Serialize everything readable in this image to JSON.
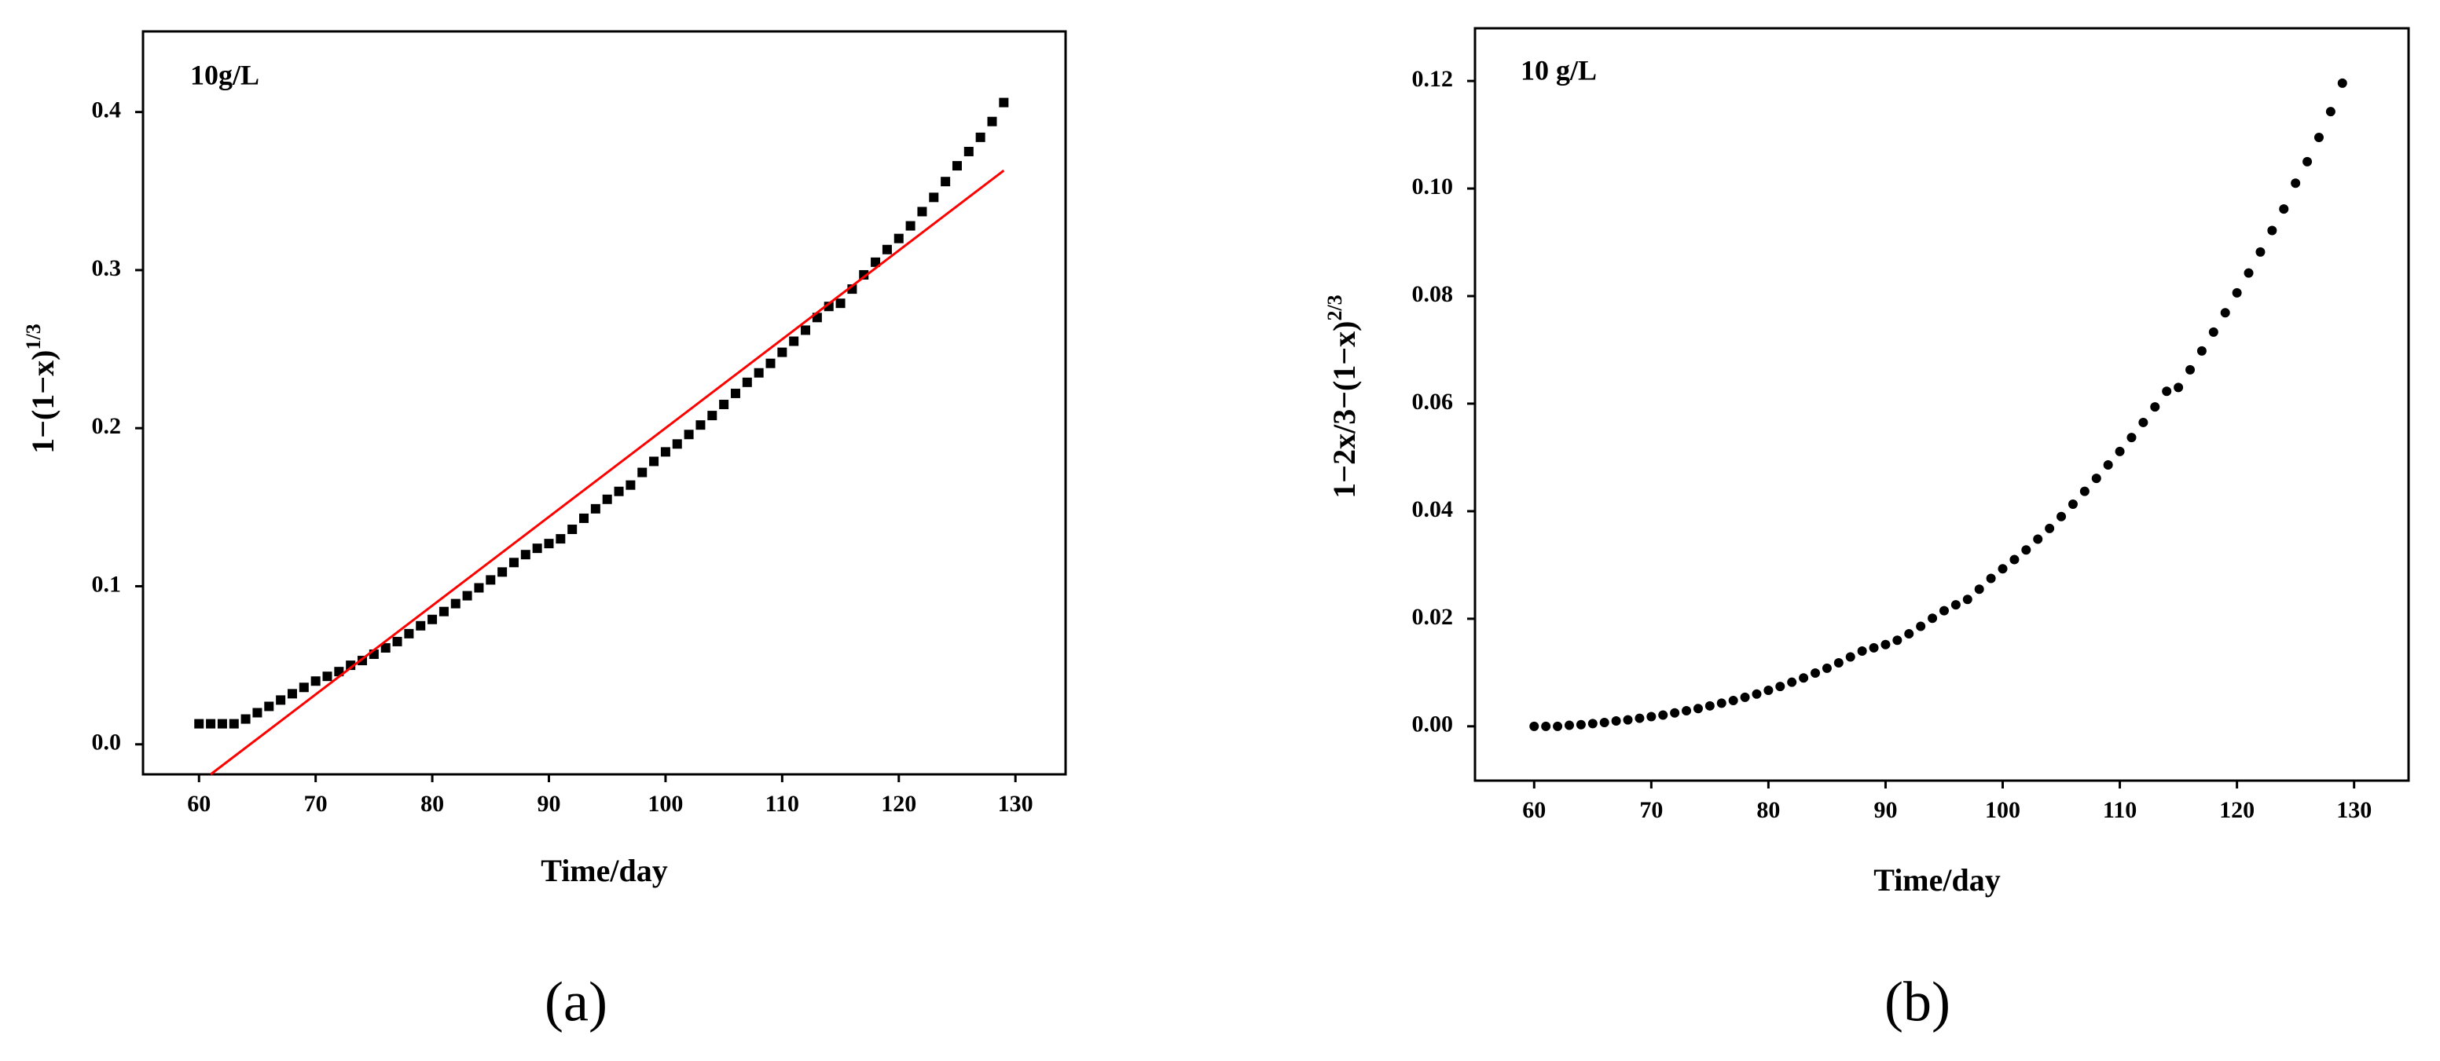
{
  "chart_data": [
    {
      "type": "scatter",
      "annotation": "10g/L",
      "panel_label": "(a)",
      "xlabel": "Time/day",
      "ylabel": {
        "text": "1−(1−x)",
        "sup": "1/3"
      },
      "x": [
        60,
        61,
        62,
        63,
        64,
        65,
        66,
        67,
        68,
        69,
        70,
        71,
        72,
        73,
        74,
        75,
        76,
        77,
        78,
        79,
        80,
        81,
        82,
        83,
        84,
        85,
        86,
        87,
        88,
        89,
        90,
        91,
        92,
        93,
        94,
        95,
        96,
        97,
        98,
        99,
        100,
        101,
        102,
        103,
        104,
        105,
        106,
        107,
        108,
        109,
        110,
        111,
        112,
        113,
        114,
        115,
        116,
        117,
        118,
        119,
        120,
        121,
        122,
        123,
        124,
        125,
        126,
        127,
        128,
        129
      ],
      "series": [
        {
          "color": "#000000",
          "marker": "square",
          "values": [
            0.013,
            0.013,
            0.013,
            0.013,
            0.016,
            0.02,
            0.024,
            0.028,
            0.032,
            0.036,
            0.04,
            0.043,
            0.046,
            0.05,
            0.053,
            0.057,
            0.061,
            0.065,
            0.07,
            0.075,
            0.079,
            0.084,
            0.089,
            0.094,
            0.099,
            0.104,
            0.109,
            0.115,
            0.12,
            0.124,
            0.127,
            0.13,
            0.136,
            0.143,
            0.149,
            0.155,
            0.16,
            0.164,
            0.172,
            0.179,
            0.185,
            0.19,
            0.196,
            0.202,
            0.208,
            0.215,
            0.222,
            0.229,
            0.235,
            0.241,
            0.248,
            0.255,
            0.262,
            0.27,
            0.277,
            0.279,
            0.288,
            0.297,
            0.305,
            0.313,
            0.32,
            0.328,
            0.337,
            0.346,
            0.356,
            0.366,
            0.375,
            0.384,
            0.394,
            0.406
          ]
        },
        {
          "color": "#ff0000",
          "marker": "line",
          "x": [
            61,
            129
          ],
          "values": [
            -0.019,
            0.363
          ]
        }
      ],
      "xlim": [
        55.2,
        134.3
      ],
      "ylim": [
        -0.019,
        0.451
      ],
      "xticks": [
        60,
        70,
        80,
        90,
        100,
        110,
        120,
        130
      ],
      "yticks": [
        {
          "value": 0,
          "label": "0.0"
        },
        {
          "value": 0.1,
          "label": "0.1"
        },
        {
          "value": 0.2,
          "label": "0.2"
        },
        {
          "value": 0.3,
          "label": "0.3"
        },
        {
          "value": 0.4,
          "label": "0.4"
        }
      ]
    },
    {
      "type": "scatter",
      "annotation": "10 g/L",
      "panel_label": "(b)",
      "xlabel": "Time/day",
      "ylabel": {
        "text": "1−2x/3−(1−x)",
        "sup": "2/3"
      },
      "x": [
        60,
        61,
        62,
        63,
        64,
        65,
        66,
        67,
        68,
        69,
        70,
        71,
        72,
        73,
        74,
        75,
        76,
        77,
        78,
        79,
        80,
        81,
        82,
        83,
        84,
        85,
        86,
        87,
        88,
        89,
        90,
        91,
        92,
        93,
        94,
        95,
        96,
        97,
        98,
        99,
        100,
        101,
        102,
        103,
        104,
        105,
        106,
        107,
        108,
        109,
        110,
        111,
        112,
        113,
        114,
        115,
        116,
        117,
        118,
        119,
        120,
        121,
        122,
        123,
        124,
        125,
        126,
        127,
        128,
        129
      ],
      "series": [
        {
          "color": "#000000",
          "marker": "circle",
          "values": [
            0,
            0,
            0,
            0.0002,
            0.0003,
            0.0005,
            0.0007,
            0.001,
            0.0012,
            0.0015,
            0.0018,
            0.0021,
            0.0025,
            0.0029,
            0.0033,
            0.0038,
            0.0043,
            0.0048,
            0.0054,
            0.006,
            0.0067,
            0.0074,
            0.0082,
            0.009,
            0.0099,
            0.0108,
            0.0118,
            0.0129,
            0.014,
            0.0146,
            0.0152,
            0.016,
            0.0172,
            0.0186,
            0.0201,
            0.0215,
            0.0226,
            0.0236,
            0.0255,
            0.0275,
            0.0293,
            0.031,
            0.0328,
            0.0348,
            0.0368,
            0.039,
            0.0413,
            0.0437,
            0.0461,
            0.0486,
            0.0511,
            0.0537,
            0.0565,
            0.0594,
            0.0623,
            0.063,
            0.0663,
            0.0698,
            0.0733,
            0.0769,
            0.0806,
            0.0843,
            0.0882,
            0.0922,
            0.0962,
            0.101,
            0.105,
            0.1095,
            0.1143,
            0.1196
          ]
        }
      ],
      "xlim": [
        54.95,
        134.65
      ],
      "ylim": [
        -0.0101,
        0.1298
      ],
      "xticks": [
        60,
        70,
        80,
        90,
        100,
        110,
        120,
        130
      ],
      "yticks": [
        {
          "value": 0,
          "label": "0.00"
        },
        {
          "value": 0.02,
          "label": "0.02"
        },
        {
          "value": 0.04,
          "label": "0.04"
        },
        {
          "value": 0.06,
          "label": "0.06"
        },
        {
          "value": 0.08,
          "label": "0.08"
        },
        {
          "value": 0.1,
          "label": "0.10"
        },
        {
          "value": 0.12,
          "label": "0.12"
        }
      ]
    }
  ]
}
